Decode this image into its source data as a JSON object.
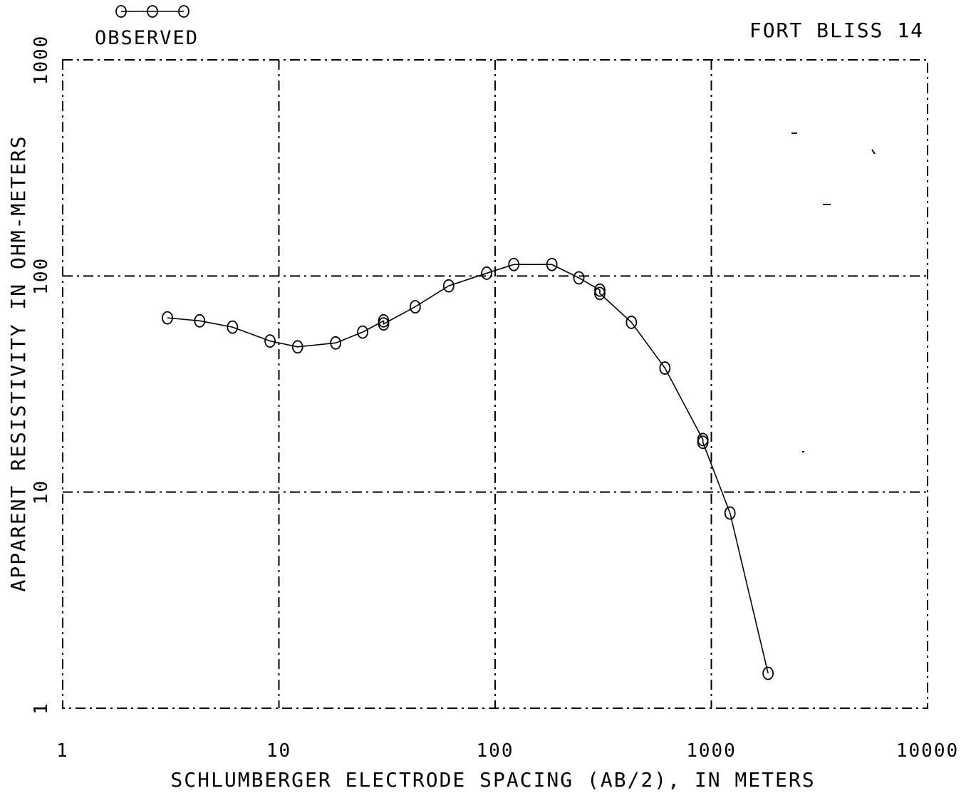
{
  "chart_data": {
    "type": "line",
    "title": "FORT BLISS 14",
    "xlabel": "SCHLUMBERGER ELECTRODE SPACING (AB/2), IN METERS",
    "ylabel": "APPARENT RESISTIVITY IN OHM-METERS",
    "x_scale": "log",
    "y_scale": "log",
    "xlim": [
      1,
      10000
    ],
    "ylim": [
      1,
      1000
    ],
    "x_ticks": [
      1,
      10,
      100,
      1000,
      10000
    ],
    "x_tick_labels": [
      "1",
      "10",
      "100",
      "1000",
      "10000"
    ],
    "y_ticks": [
      1,
      10,
      100,
      1000
    ],
    "y_tick_labels": [
      "1",
      "10",
      "100",
      "1000"
    ],
    "grid": true,
    "legend_placement": "top-left",
    "series": [
      {
        "name": "OBSERVED",
        "color": "#000000",
        "marker": "circle",
        "x": [
          3.05,
          4.3,
          6.1,
          9.1,
          12.2,
          18.3,
          24.4,
          30.5,
          30.5,
          42.7,
          61,
          91.4,
          122,
          183,
          244,
          305,
          305,
          427,
          610,
          914,
          914,
          1220,
          1830
        ],
        "y": [
          64,
          62,
          58,
          50,
          47,
          49,
          55,
          62,
          60,
          72,
          90,
          103,
          113,
          113,
          98,
          86,
          83,
          61,
          37.5,
          17.5,
          17,
          8,
          1.45
        ]
      }
    ]
  }
}
